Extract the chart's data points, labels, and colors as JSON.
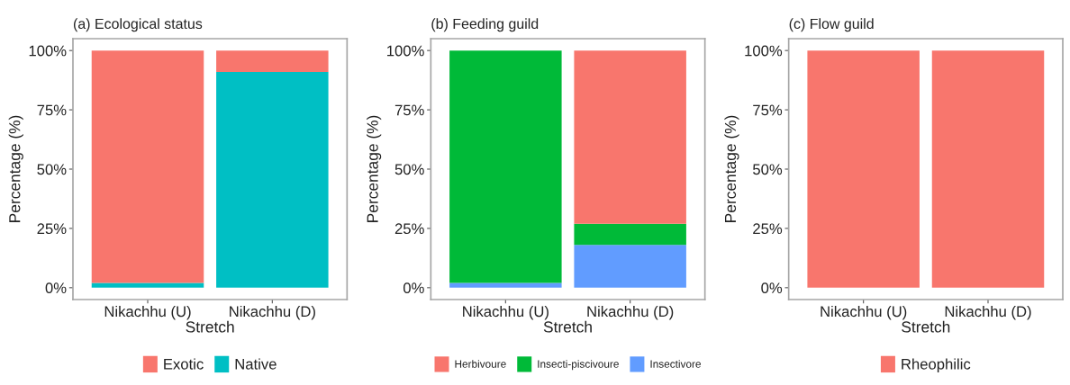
{
  "chart_data": [
    {
      "type": "bar",
      "title": "(a) Ecological status",
      "xlabel": "Stretch",
      "ylabel": "Percentage (%)",
      "categories": [
        "Nikachhu (U)",
        "Nikachhu (D)"
      ],
      "series": [
        {
          "name": "Native",
          "color": "#00bfc4",
          "values": [
            2,
            91
          ]
        },
        {
          "name": "Exotic",
          "color": "#f8766d",
          "values": [
            98,
            9
          ]
        }
      ],
      "stacked": true,
      "ylim": [
        -5,
        105
      ],
      "yticks": [
        {
          "value": 0,
          "label": "0%"
        },
        {
          "value": 25,
          "label": "25%"
        },
        {
          "value": 50,
          "label": "50%"
        },
        {
          "value": 75,
          "label": "75%"
        },
        {
          "value": 100,
          "label": "100%"
        }
      ],
      "grid": false,
      "legend": "bottom"
    },
    {
      "type": "bar",
      "title": "(b) Feeding guild",
      "xlabel": "Stretch",
      "ylabel": "Percentage (%)",
      "categories": [
        "Nikachhu (U)",
        "Nikachhu (D)"
      ],
      "series": [
        {
          "name": "Insectivore",
          "color": "#619cff",
          "values": [
            2,
            18
          ]
        },
        {
          "name": "Insecti-piscivoure",
          "color": "#00ba38",
          "values": [
            98,
            9
          ]
        },
        {
          "name": "Herbivoure",
          "color": "#f8766d",
          "values": [
            0,
            73
          ]
        }
      ],
      "stacked": true,
      "ylim": [
        -5,
        105
      ],
      "yticks": [
        {
          "value": 0,
          "label": "0%"
        },
        {
          "value": 25,
          "label": "25%"
        },
        {
          "value": 50,
          "label": "50%"
        },
        {
          "value": 75,
          "label": "75%"
        },
        {
          "value": 100,
          "label": "100%"
        }
      ],
      "grid": false,
      "legend": "bottom"
    },
    {
      "type": "bar",
      "title": "(c) Flow guild",
      "xlabel": "Stretch",
      "ylabel": "Percentage (%)",
      "categories": [
        "Nikachhu (U)",
        "Nikachhu (D)"
      ],
      "series": [
        {
          "name": "Rheophilic",
          "color": "#f8766d",
          "values": [
            100,
            100
          ]
        }
      ],
      "ylim": [
        -5,
        105
      ],
      "yticks": [
        {
          "value": 0,
          "label": "0%"
        },
        {
          "value": 25,
          "label": "25%"
        },
        {
          "value": 50,
          "label": "50%"
        },
        {
          "value": 75,
          "label": "75%"
        },
        {
          "value": 100,
          "label": "100%"
        }
      ],
      "grid": false,
      "legend": "bottom"
    }
  ]
}
